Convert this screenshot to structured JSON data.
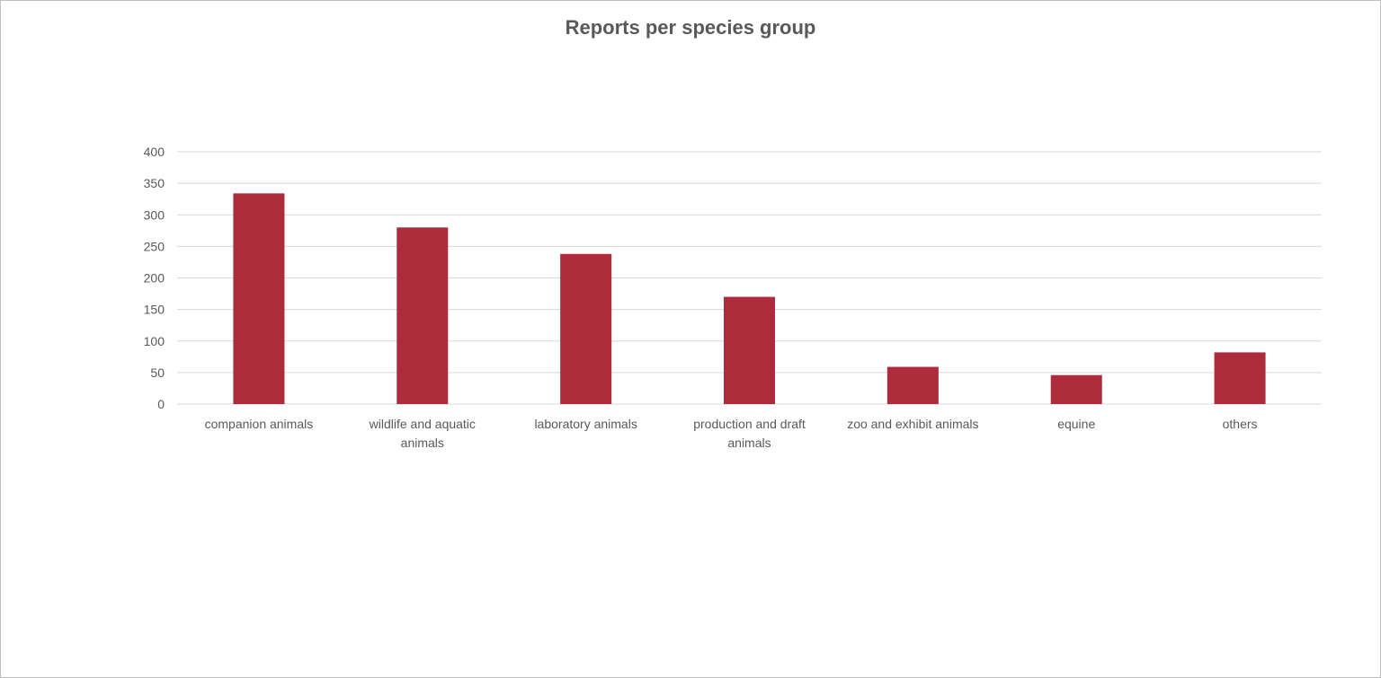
{
  "chart_data": {
    "type": "bar",
    "title": "Reports per species group",
    "categories": [
      "companion animals",
      "wildlife and aquatic animals",
      "laboratory animals",
      "production and draft animals",
      "zoo and exhibit animals",
      "equine",
      "others"
    ],
    "category_lines": [
      [
        "companion animals"
      ],
      [
        "wildlife and aquatic",
        "animals"
      ],
      [
        "laboratory animals"
      ],
      [
        "production and draft",
        "animals"
      ],
      [
        "zoo and exhibit animals"
      ],
      [
        "equine"
      ],
      [
        "others"
      ]
    ],
    "values": [
      334,
      280,
      238,
      170,
      59,
      46,
      82
    ],
    "ylim": [
      0,
      400
    ],
    "yticks": [
      0,
      50,
      100,
      150,
      200,
      250,
      300,
      350,
      400
    ],
    "grid": true,
    "legend": "none",
    "bar_color": "#ad2b3a"
  }
}
